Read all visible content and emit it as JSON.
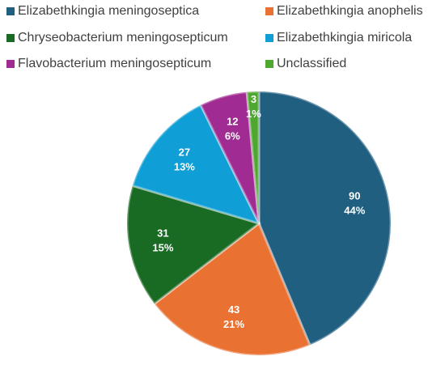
{
  "chart_data": {
    "type": "pie",
    "categories": [
      "Elizabethkingia meningoseptica",
      "Elizabethkingia anophelis",
      "Chryseobacterium meningosepticum",
      "Elizabethkingia miricola",
      "Flavobacterium meningosepticum",
      "Unclassified"
    ],
    "values": [
      90,
      43,
      31,
      27,
      12,
      3
    ],
    "percent_labels": [
      "44%",
      "21%",
      "15%",
      "13%",
      "6%",
      "1%"
    ],
    "colors": [
      "#215f80",
      "#e97132",
      "#196b24",
      "#0f9ed5",
      "#a02b93",
      "#4ea72e"
    ]
  }
}
